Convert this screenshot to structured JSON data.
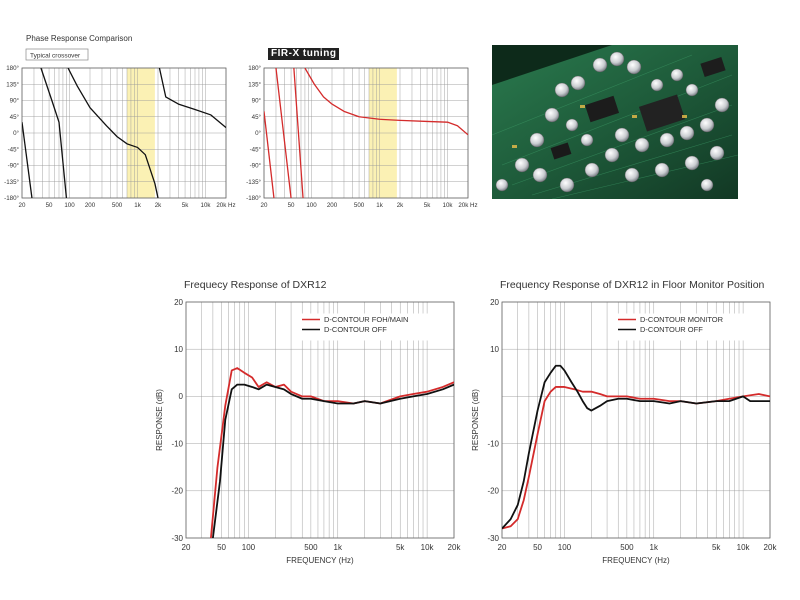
{
  "phase_section": {
    "title": "Phase Response Comparison",
    "left_tag": "Typical crossover",
    "right_tag": "FIR-X tuning"
  },
  "colors": {
    "black_curve": "#111111",
    "red_curve": "#d42b2b",
    "grid": "#9a9a9a",
    "highlight": "#fbf1b4",
    "pcb_green": "#1e5b3a"
  },
  "image": {
    "subject": "circuit-board-photo"
  },
  "chart_data": [
    {
      "type": "line",
      "id": "phase-typical",
      "title": "Phase Response Comparison",
      "xscale": "log",
      "xlim": [
        20,
        20000
      ],
      "ylim": [
        -180,
        180
      ],
      "xticks": [
        20,
        50,
        100,
        200,
        500,
        1000,
        2000,
        5000,
        10000,
        20000
      ],
      "xtick_labels": [
        "20",
        "50",
        "100",
        "200",
        "500",
        "1k",
        "2k",
        "5k",
        "10k",
        "20k Hz"
      ],
      "yticks": [
        180,
        135,
        90,
        45,
        0,
        -45,
        -90,
        -135,
        -180
      ],
      "ytick_labels": [
        "180°",
        "135°",
        "90°",
        "45°",
        "0°",
        "-45°",
        "-90°",
        "-135°",
        "-180°"
      ],
      "highlight_band": [
        700,
        1800
      ],
      "series": [
        {
          "color": "#111111",
          "segments": [
            [
              [
                20,
                30
              ],
              [
                28,
                -180
              ]
            ],
            [
              [
                38,
                180
              ],
              [
                55,
                90
              ],
              [
                70,
                30
              ],
              [
                90,
                -180
              ]
            ],
            [
              [
                95,
                180
              ],
              [
                130,
                130
              ],
              [
                200,
                70
              ],
              [
                350,
                20
              ],
              [
                500,
                -10
              ],
              [
                700,
                -30
              ],
              [
                1000,
                -40
              ],
              [
                1300,
                -60
              ],
              [
                1800,
                -140
              ],
              [
                2000,
                -180
              ]
            ],
            [
              [
                2100,
                180
              ],
              [
                2600,
                100
              ],
              [
                4000,
                80
              ],
              [
                7000,
                65
              ],
              [
                12000,
                50
              ],
              [
                20000,
                15
              ]
            ]
          ]
        }
      ]
    },
    {
      "type": "line",
      "id": "phase-firx",
      "xscale": "log",
      "xlim": [
        20,
        20000
      ],
      "ylim": [
        -180,
        180
      ],
      "xticks": [
        20,
        50,
        100,
        200,
        500,
        1000,
        2000,
        5000,
        10000,
        20000
      ],
      "xtick_labels": [
        "20",
        "50",
        "100",
        "200",
        "500",
        "1k",
        "2k",
        "5k",
        "10k",
        "20k Hz"
      ],
      "yticks": [
        180,
        135,
        90,
        45,
        0,
        -45,
        -90,
        -135,
        -180
      ],
      "ytick_labels": [
        "180°",
        "135°",
        "90°",
        "45°",
        "0°",
        "-45°",
        "-90°",
        "-135°",
        "-180°"
      ],
      "highlight_band": [
        700,
        1800
      ],
      "series": [
        {
          "color": "#d42b2b",
          "segments": [
            [
              [
                20,
                60
              ],
              [
                28,
                -180
              ]
            ],
            [
              [
                30,
                180
              ],
              [
                50,
                -180
              ]
            ],
            [
              [
                55,
                180
              ],
              [
                75,
                -180
              ]
            ],
            [
              [
                80,
                180
              ],
              [
                110,
                135
              ],
              [
                150,
                100
              ],
              [
                200,
                80
              ],
              [
                300,
                60
              ],
              [
                500,
                45
              ],
              [
                1000,
                38
              ],
              [
                2000,
                35
              ],
              [
                5000,
                32
              ],
              [
                10000,
                30
              ],
              [
                14000,
                20
              ],
              [
                20000,
                -5
              ]
            ]
          ]
        }
      ]
    },
    {
      "type": "line",
      "id": "freq-dxr12",
      "title": "Frequecy Response of DXR12",
      "xlabel": "FREQUENCY (Hz)",
      "ylabel": "RESPONSE (dB)",
      "xscale": "log",
      "xlim": [
        20,
        20000
      ],
      "ylim": [
        -30,
        20
      ],
      "xticks": [
        20,
        50,
        100,
        500,
        1000,
        5000,
        10000,
        20000
      ],
      "xtick_labels": [
        "20",
        "50",
        "100",
        "500",
        "1k",
        "5k",
        "10k",
        "20k"
      ],
      "yticks": [
        20,
        10,
        0,
        -10,
        -20,
        -30
      ],
      "ytick_labels": [
        "20",
        "10",
        "0",
        "-10",
        "-20",
        "-30"
      ],
      "legend": "top-right",
      "series": [
        {
          "name": "D-CONTOUR FOH/MAIN",
          "color": "#d42b2b",
          "points": [
            [
              38,
              -30
            ],
            [
              45,
              -15
            ],
            [
              55,
              -2
            ],
            [
              65,
              5.5
            ],
            [
              75,
              6
            ],
            [
              90,
              5
            ],
            [
              110,
              4
            ],
            [
              130,
              2
            ],
            [
              160,
              3
            ],
            [
              200,
              2
            ],
            [
              250,
              2.5
            ],
            [
              300,
              1
            ],
            [
              400,
              0
            ],
            [
              500,
              0
            ],
            [
              700,
              -1
            ],
            [
              1000,
              -1
            ],
            [
              1500,
              -1.5
            ],
            [
              2000,
              -1
            ],
            [
              3000,
              -1.5
            ],
            [
              5000,
              0
            ],
            [
              7000,
              0.5
            ],
            [
              10000,
              1
            ],
            [
              15000,
              2
            ],
            [
              20000,
              3
            ]
          ]
        },
        {
          "name": "D-CONTOUR OFF",
          "color": "#111111",
          "points": [
            [
              40,
              -30
            ],
            [
              48,
              -18
            ],
            [
              55,
              -5
            ],
            [
              65,
              1.5
            ],
            [
              75,
              2.5
            ],
            [
              90,
              2.5
            ],
            [
              110,
              2
            ],
            [
              130,
              1.5
            ],
            [
              160,
              2.5
            ],
            [
              200,
              2
            ],
            [
              250,
              1.5
            ],
            [
              300,
              0.5
            ],
            [
              400,
              -0.5
            ],
            [
              500,
              -0.5
            ],
            [
              700,
              -1
            ],
            [
              1000,
              -1.5
            ],
            [
              1500,
              -1.5
            ],
            [
              2000,
              -1
            ],
            [
              3000,
              -1.5
            ],
            [
              5000,
              -0.5
            ],
            [
              7000,
              0
            ],
            [
              10000,
              0.5
            ],
            [
              15000,
              1.5
            ],
            [
              20000,
              2.5
            ]
          ]
        }
      ]
    },
    {
      "type": "line",
      "id": "freq-dxr12-monitor",
      "title": "Frequency Response of DXR12 in Floor Monitor Position",
      "xlabel": "FREQUENCY (Hz)",
      "ylabel": "RESPONSE (dB)",
      "xscale": "log",
      "xlim": [
        20,
        20000
      ],
      "ylim": [
        -30,
        20
      ],
      "xticks": [
        20,
        50,
        100,
        500,
        1000,
        5000,
        10000,
        20000
      ],
      "xtick_labels": [
        "20",
        "50",
        "100",
        "500",
        "1k",
        "5k",
        "10k",
        "20k"
      ],
      "yticks": [
        20,
        10,
        -10,
        -20,
        -30
      ],
      "ytick_labels": [
        "20",
        "10",
        "-10",
        "-20",
        "-30"
      ],
      "legend": "top-right",
      "series": [
        {
          "name": "D-CONTOUR MONITOR",
          "color": "#d42b2b",
          "points": [
            [
              20,
              -28
            ],
            [
              25,
              -27.5
            ],
            [
              30,
              -26
            ],
            [
              35,
              -22
            ],
            [
              40,
              -17
            ],
            [
              50,
              -8
            ],
            [
              60,
              -1
            ],
            [
              70,
              1
            ],
            [
              80,
              2
            ],
            [
              100,
              2
            ],
            [
              130,
              1.5
            ],
            [
              160,
              1
            ],
            [
              200,
              1
            ],
            [
              250,
              0.5
            ],
            [
              300,
              0
            ],
            [
              400,
              0
            ],
            [
              500,
              0
            ],
            [
              700,
              -0.5
            ],
            [
              1000,
              -0.5
            ],
            [
              1500,
              -1
            ],
            [
              2000,
              -1
            ],
            [
              3000,
              -1.5
            ],
            [
              5000,
              -1
            ],
            [
              7000,
              -0.5
            ],
            [
              10000,
              0
            ],
            [
              15000,
              0.5
            ],
            [
              20000,
              0
            ]
          ]
        },
        {
          "name": "D-CONTOUR OFF",
          "color": "#111111",
          "points": [
            [
              20,
              -28
            ],
            [
              25,
              -26
            ],
            [
              30,
              -23
            ],
            [
              35,
              -18
            ],
            [
              40,
              -12
            ],
            [
              50,
              -3
            ],
            [
              60,
              3
            ],
            [
              70,
              5
            ],
            [
              80,
              6.5
            ],
            [
              90,
              6.5
            ],
            [
              100,
              5.5
            ],
            [
              120,
              3
            ],
            [
              140,
              1
            ],
            [
              160,
              -1
            ],
            [
              180,
              -2.5
            ],
            [
              200,
              -3
            ],
            [
              250,
              -2
            ],
            [
              300,
              -1
            ],
            [
              400,
              -0.5
            ],
            [
              500,
              -0.5
            ],
            [
              700,
              -1
            ],
            [
              1000,
              -1
            ],
            [
              1500,
              -1.5
            ],
            [
              2000,
              -1
            ],
            [
              3000,
              -1.5
            ],
            [
              5000,
              -1
            ],
            [
              7000,
              -1
            ],
            [
              10000,
              0
            ],
            [
              12000,
              -1
            ],
            [
              15000,
              -1
            ],
            [
              20000,
              -1
            ]
          ]
        }
      ]
    }
  ]
}
